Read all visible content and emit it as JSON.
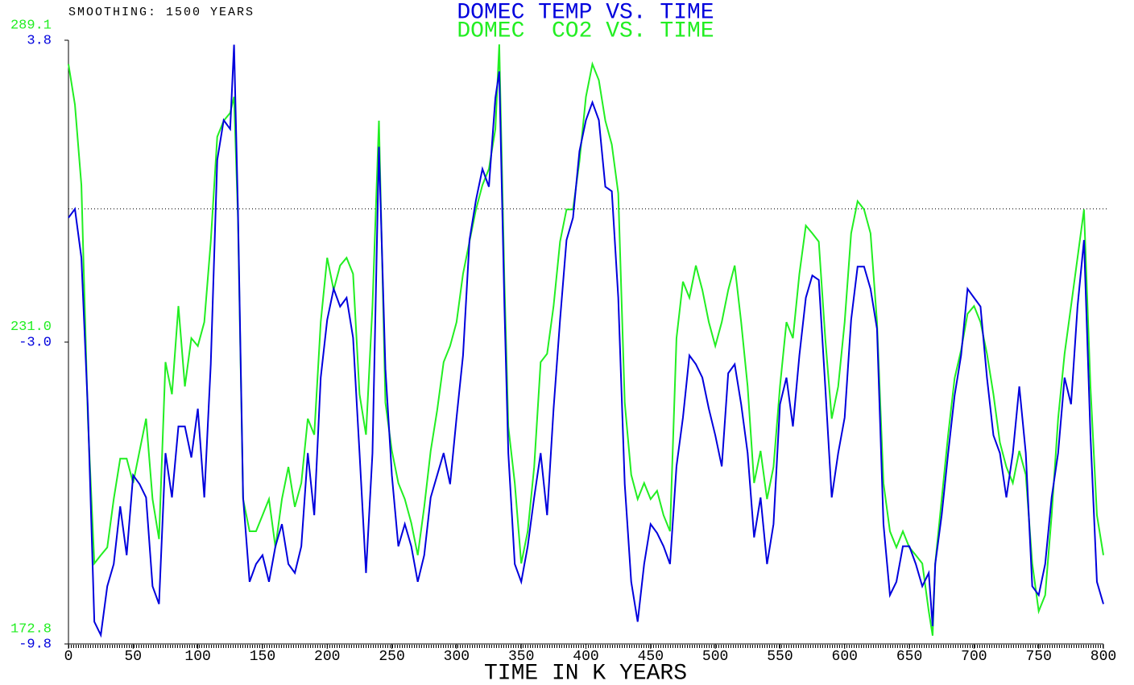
{
  "chart_data": {
    "type": "line",
    "subtitle": "SMOOTHING: 1500 YEARS",
    "x_label": "TIME IN K YEARS",
    "xlim": [
      0,
      800
    ],
    "xticks": [
      0,
      50,
      100,
      150,
      200,
      250,
      300,
      350,
      400,
      450,
      500,
      550,
      600,
      650,
      700,
      750,
      800
    ],
    "ylim": [
      -9.8,
      3.8
    ],
    "yticks": [
      -9.8,
      {
        "value": -3,
        "label": "-3.0"
      },
      3.8
    ],
    "y2lim": [
      172.8,
      289.1
    ],
    "y2ticks": [
      172.8,
      {
        "value": 231,
        "label": "231.0"
      },
      289.1
    ],
    "reference_y": 0,
    "x": [
      0,
      5,
      10,
      15,
      20,
      25,
      30,
      35,
      40,
      45,
      50,
      55,
      60,
      65,
      70,
      75,
      80,
      85,
      90,
      95,
      100,
      105,
      110,
      115,
      120,
      125,
      128,
      131,
      135,
      140,
      145,
      150,
      155,
      160,
      165,
      170,
      175,
      180,
      185,
      190,
      195,
      200,
      205,
      210,
      215,
      220,
      225,
      230,
      235,
      240,
      245,
      250,
      255,
      260,
      265,
      270,
      275,
      280,
      285,
      290,
      295,
      300,
      305,
      310,
      315,
      320,
      325,
      330,
      333,
      337,
      340,
      345,
      350,
      355,
      360,
      365,
      370,
      375,
      380,
      385,
      390,
      395,
      400,
      405,
      410,
      415,
      420,
      425,
      430,
      435,
      440,
      445,
      450,
      455,
      460,
      465,
      470,
      475,
      480,
      485,
      490,
      495,
      500,
      505,
      510,
      515,
      520,
      525,
      530,
      535,
      540,
      545,
      550,
      555,
      560,
      565,
      570,
      575,
      580,
      585,
      590,
      595,
      600,
      605,
      610,
      615,
      620,
      625,
      630,
      635,
      640,
      645,
      650,
      655,
      660,
      665,
      668,
      670,
      675,
      680,
      685,
      690,
      695,
      700,
      705,
      710,
      715,
      720,
      725,
      730,
      735,
      740,
      745,
      750,
      755,
      760,
      765,
      770,
      775,
      780,
      785,
      790,
      795,
      800
    ],
    "series": [
      {
        "name": "DOMEC TEMP VS. TIME",
        "color": "#0000dd",
        "values": [
          -0.2,
          0.0,
          -1.1,
          -4.5,
          -9.3,
          -9.6,
          -8.5,
          -8.0,
          -6.7,
          -7.8,
          -6.0,
          -6.2,
          -6.5,
          -8.5,
          -8.9,
          -5.5,
          -6.5,
          -4.9,
          -4.9,
          -5.6,
          -4.5,
          -6.5,
          -3.5,
          1.1,
          2.0,
          1.8,
          3.7,
          0.0,
          -6.5,
          -8.4,
          -8.0,
          -7.8,
          -8.4,
          -7.6,
          -7.1,
          -8.0,
          -8.2,
          -7.6,
          -5.5,
          -6.9,
          -3.8,
          -2.5,
          -1.8,
          -2.2,
          -2.0,
          -2.9,
          -5.5,
          -8.2,
          -5.5,
          1.4,
          -3.6,
          -6.0,
          -7.6,
          -7.1,
          -7.6,
          -8.4,
          -7.8,
          -6.5,
          -6.0,
          -5.5,
          -6.2,
          -4.7,
          -3.3,
          -0.7,
          0.2,
          0.9,
          0.5,
          2.5,
          3.1,
          -2.2,
          -5.5,
          -8.0,
          -8.4,
          -7.6,
          -6.5,
          -5.5,
          -6.9,
          -4.5,
          -2.5,
          -0.7,
          -0.2,
          1.3,
          2.0,
          2.4,
          2.0,
          0.5,
          0.4,
          -2.0,
          -6.2,
          -8.4,
          -9.3,
          -8.0,
          -7.1,
          -7.3,
          -7.6,
          -8.0,
          -5.8,
          -4.7,
          -3.3,
          -3.5,
          -3.8,
          -4.5,
          -5.1,
          -5.8,
          -3.7,
          -3.5,
          -4.4,
          -5.5,
          -7.4,
          -6.5,
          -8.0,
          -7.1,
          -4.4,
          -3.8,
          -4.9,
          -3.3,
          -2.0,
          -1.5,
          -1.6,
          -4.0,
          -6.5,
          -5.5,
          -4.7,
          -2.5,
          -1.3,
          -1.3,
          -1.8,
          -2.7,
          -7.1,
          -8.7,
          -8.4,
          -7.6,
          -7.6,
          -8.0,
          -8.5,
          -8.2,
          -9.4,
          -8.0,
          -6.9,
          -5.5,
          -4.2,
          -3.3,
          -1.8,
          -2.0,
          -2.2,
          -3.8,
          -5.1,
          -5.5,
          -6.5,
          -5.5,
          -4.0,
          -5.5,
          -8.5,
          -8.7,
          -8.0,
          -6.5,
          -5.5,
          -3.8,
          -4.4,
          -2.2,
          -0.7,
          -5.1,
          -8.4,
          -8.9
        ]
      },
      {
        "name": "DOMEC  CO2 VS. TIME",
        "color": "#22ee22",
        "axis": "y2",
        "values": [
          284.5,
          276.7,
          261.2,
          216.2,
          188.3,
          189.9,
          191.4,
          200.7,
          208.5,
          208.5,
          203.8,
          210.0,
          216.2,
          200.7,
          193.0,
          227.1,
          220.9,
          237.9,
          222.4,
          231.7,
          230.2,
          234.8,
          250.3,
          270.5,
          273.6,
          275.1,
          278.2,
          255.0,
          200.7,
          194.5,
          194.5,
          197.6,
          200.7,
          191.4,
          200.7,
          206.9,
          199.2,
          203.8,
          216.2,
          213.1,
          234.8,
          247.2,
          241.0,
          245.7,
          247.2,
          244.1,
          220.9,
          213.1,
          237.9,
          273.6,
          219.3,
          210.0,
          203.8,
          200.7,
          196.1,
          189.9,
          199.2,
          210.0,
          217.8,
          227.1,
          230.2,
          234.8,
          244.1,
          250.3,
          256.5,
          261.2,
          264.3,
          272.0,
          288.3,
          242.6,
          214.7,
          203.8,
          188.3,
          194.5,
          206.9,
          227.1,
          228.7,
          237.9,
          250.3,
          256.5,
          256.5,
          265.8,
          278.2,
          284.5,
          281.4,
          273.6,
          269.0,
          259.6,
          219.3,
          205.4,
          200.7,
          203.8,
          200.7,
          202.3,
          197.6,
          194.5,
          231.7,
          242.6,
          239.5,
          245.7,
          241.0,
          234.8,
          230.2,
          234.8,
          241.0,
          245.7,
          234.8,
          222.4,
          203.8,
          210.0,
          200.7,
          206.9,
          222.4,
          234.8,
          231.7,
          244.1,
          253.4,
          251.9,
          250.3,
          231.7,
          216.2,
          222.4,
          234.8,
          251.9,
          258.1,
          256.5,
          251.9,
          234.8,
          203.8,
          194.5,
          191.4,
          194.5,
          191.4,
          189.9,
          188.3,
          179.1,
          174.4,
          188.3,
          200.7,
          213.1,
          224.0,
          229.4,
          236.4,
          237.9,
          234.8,
          228.7,
          220.9,
          211.6,
          206.9,
          203.8,
          210.0,
          205.4,
          188.3,
          179.1,
          182.2,
          197.6,
          216.2,
          228.7,
          237.9,
          247.2,
          256.5,
          222.4,
          197.6,
          189.9
        ]
      }
    ]
  }
}
